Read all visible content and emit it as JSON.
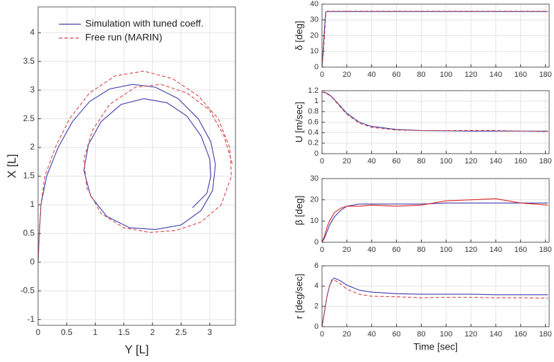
{
  "chart_data": [
    {
      "type": "line",
      "xlabel": "Y [L]",
      "ylabel": "X [L]",
      "grid": true,
      "legend": "upper left",
      "xlim": [
        0,
        3.45
      ],
      "ylim": [
        -1.1,
        4.45
      ],
      "xticks": [
        0,
        0.5,
        1,
        1.5,
        2,
        2.5,
        3
      ],
      "yticks": [
        -1,
        -0.5,
        0,
        0.5,
        1,
        1.5,
        2,
        2.5,
        3,
        3.5,
        4
      ],
      "series": [
        {
          "name": "Simulation with tuned coeff.",
          "color": "#3a3aa8",
          "line_style": "solid",
          "x": [
            0,
            0.02,
            0.05,
            0.15,
            0.35,
            0.6,
            0.9,
            1.25,
            1.65,
            2.05,
            2.45,
            2.8,
            3.02,
            3.1,
            3.05,
            2.85,
            2.5,
            2.05,
            1.6,
            1.2,
            0.92,
            0.8,
            0.88,
            1.1,
            1.45,
            1.85,
            2.25,
            2.6,
            2.85,
            3.0,
            3.02,
            2.95,
            2.7
          ],
          "values": [
            0,
            0.5,
            1.0,
            1.5,
            2.0,
            2.45,
            2.8,
            3.02,
            3.1,
            3.05,
            2.85,
            2.5,
            2.1,
            1.7,
            1.25,
            0.9,
            0.65,
            0.57,
            0.6,
            0.8,
            1.15,
            1.6,
            2.05,
            2.45,
            2.75,
            2.85,
            2.78,
            2.55,
            2.2,
            1.8,
            1.5,
            1.2,
            0.95
          ]
        },
        {
          "name": "Free run (MARIN)",
          "color": "#d94040",
          "line_style": "dashed",
          "x": [
            0,
            0.02,
            0.05,
            0.12,
            0.3,
            0.55,
            0.9,
            1.35,
            1.85,
            2.35,
            2.8,
            3.15,
            3.35,
            3.38,
            3.2,
            2.85,
            2.4,
            1.95,
            1.5,
            1.1,
            0.85,
            0.8,
            0.95,
            1.25,
            1.7,
            2.15,
            2.6,
            3.0,
            3.25,
            3.4
          ],
          "values": [
            0,
            0.5,
            1.0,
            1.5,
            2.0,
            2.5,
            2.95,
            3.25,
            3.33,
            3.2,
            2.9,
            2.5,
            2.0,
            1.5,
            1.0,
            0.7,
            0.55,
            0.52,
            0.6,
            0.85,
            1.3,
            1.8,
            2.3,
            2.75,
            3.05,
            3.1,
            2.95,
            2.65,
            2.2,
            1.7
          ]
        }
      ]
    },
    {
      "type": "line",
      "ylabel": "δ [deg]",
      "grid": true,
      "xlim": [
        0,
        183
      ],
      "ylim": [
        0,
        40
      ],
      "xticks": [
        0,
        20,
        40,
        60,
        80,
        100,
        120,
        140,
        160,
        180
      ],
      "yticks": [
        0,
        10,
        20,
        30,
        40
      ],
      "x": [
        0,
        1,
        2,
        3,
        4,
        6,
        10,
        20,
        40,
        80,
        120,
        160,
        182
      ],
      "series": [
        {
          "color": "#3a3aa8",
          "line_style": "solid",
          "values": [
            0,
            12,
            25,
            35,
            35.3,
            35.3,
            35.3,
            35.3,
            35.3,
            35.3,
            35.3,
            35.3,
            35.3
          ]
        },
        {
          "color": "#d94040",
          "line_style": "dashed",
          "values": [
            0,
            8,
            20,
            33,
            35.5,
            35.5,
            35.5,
            35.5,
            35.5,
            35.5,
            35.5,
            35.5,
            35.5
          ]
        }
      ]
    },
    {
      "type": "line",
      "ylabel": "U [m/sec]",
      "grid": true,
      "xlim": [
        0,
        183
      ],
      "ylim": [
        0,
        1.2
      ],
      "xticks": [
        0,
        20,
        40,
        60,
        80,
        100,
        120,
        140,
        160,
        180
      ],
      "yticks": [
        0,
        0.2,
        0.4,
        0.6,
        0.8,
        1,
        1.2
      ],
      "x": [
        0,
        2,
        4,
        6,
        8,
        10,
        15,
        20,
        30,
        40,
        60,
        80,
        100,
        120,
        140,
        160,
        182
      ],
      "series": [
        {
          "color": "#3a3aa8",
          "line_style": "solid",
          "values": [
            1.17,
            1.17,
            1.15,
            1.12,
            1.08,
            1.03,
            0.9,
            0.77,
            0.6,
            0.52,
            0.46,
            0.44,
            0.435,
            0.43,
            0.43,
            0.43,
            0.43
          ]
        },
        {
          "color": "#d94040",
          "line_style": "dashed",
          "values": [
            1.18,
            1.16,
            1.14,
            1.11,
            1.07,
            1.02,
            0.88,
            0.75,
            0.58,
            0.5,
            0.45,
            0.44,
            0.44,
            0.44,
            0.44,
            0.43,
            0.42
          ]
        }
      ]
    },
    {
      "type": "line",
      "ylabel": "β [deg]",
      "grid": true,
      "xlim": [
        0,
        183
      ],
      "ylim": [
        0,
        30
      ],
      "xticks": [
        0,
        20,
        40,
        60,
        80,
        100,
        120,
        140,
        160,
        180
      ],
      "yticks": [
        0,
        10,
        20,
        30
      ],
      "x": [
        0,
        2,
        4,
        6,
        8,
        10,
        15,
        20,
        30,
        40,
        60,
        80,
        100,
        120,
        140,
        160,
        182
      ],
      "series": [
        {
          "color": "#3a3aa8",
          "line_style": "solid",
          "values": [
            0,
            2,
            5,
            8,
            10,
            12,
            15,
            17,
            18,
            18,
            18,
            18,
            18.5,
            18.5,
            18.5,
            18.5,
            18.5
          ]
        },
        {
          "color": "#e02020",
          "line_style": "solid",
          "values": [
            0,
            3,
            7,
            10,
            12,
            14,
            16,
            17,
            17,
            17.5,
            17,
            17.5,
            19.5,
            20,
            20.5,
            18.5,
            17.5
          ]
        }
      ]
    },
    {
      "type": "line",
      "xlabel": "Time [sec]",
      "ylabel": "r [deg/sec]",
      "grid": true,
      "xlim": [
        0,
        183
      ],
      "ylim": [
        0,
        6
      ],
      "xticks": [
        0,
        20,
        40,
        60,
        80,
        100,
        120,
        140,
        160,
        180
      ],
      "yticks": [
        0,
        2,
        4,
        6
      ],
      "x": [
        0,
        2,
        4,
        6,
        8,
        10,
        15,
        20,
        30,
        40,
        60,
        80,
        100,
        120,
        140,
        160,
        182
      ],
      "series": [
        {
          "color": "#3a3aa8",
          "line_style": "solid",
          "values": [
            0,
            1.5,
            3,
            4,
            4.6,
            4.8,
            4.5,
            4.1,
            3.6,
            3.4,
            3.25,
            3.2,
            3.2,
            3.2,
            3.15,
            3.15,
            3.15
          ]
        },
        {
          "color": "#d94040",
          "line_style": "dashed",
          "values": [
            0,
            1.5,
            3,
            4,
            4.5,
            4.6,
            4.2,
            3.7,
            3.2,
            3.0,
            2.95,
            2.85,
            2.9,
            2.9,
            2.85,
            2.85,
            2.8
          ]
        }
      ]
    }
  ]
}
